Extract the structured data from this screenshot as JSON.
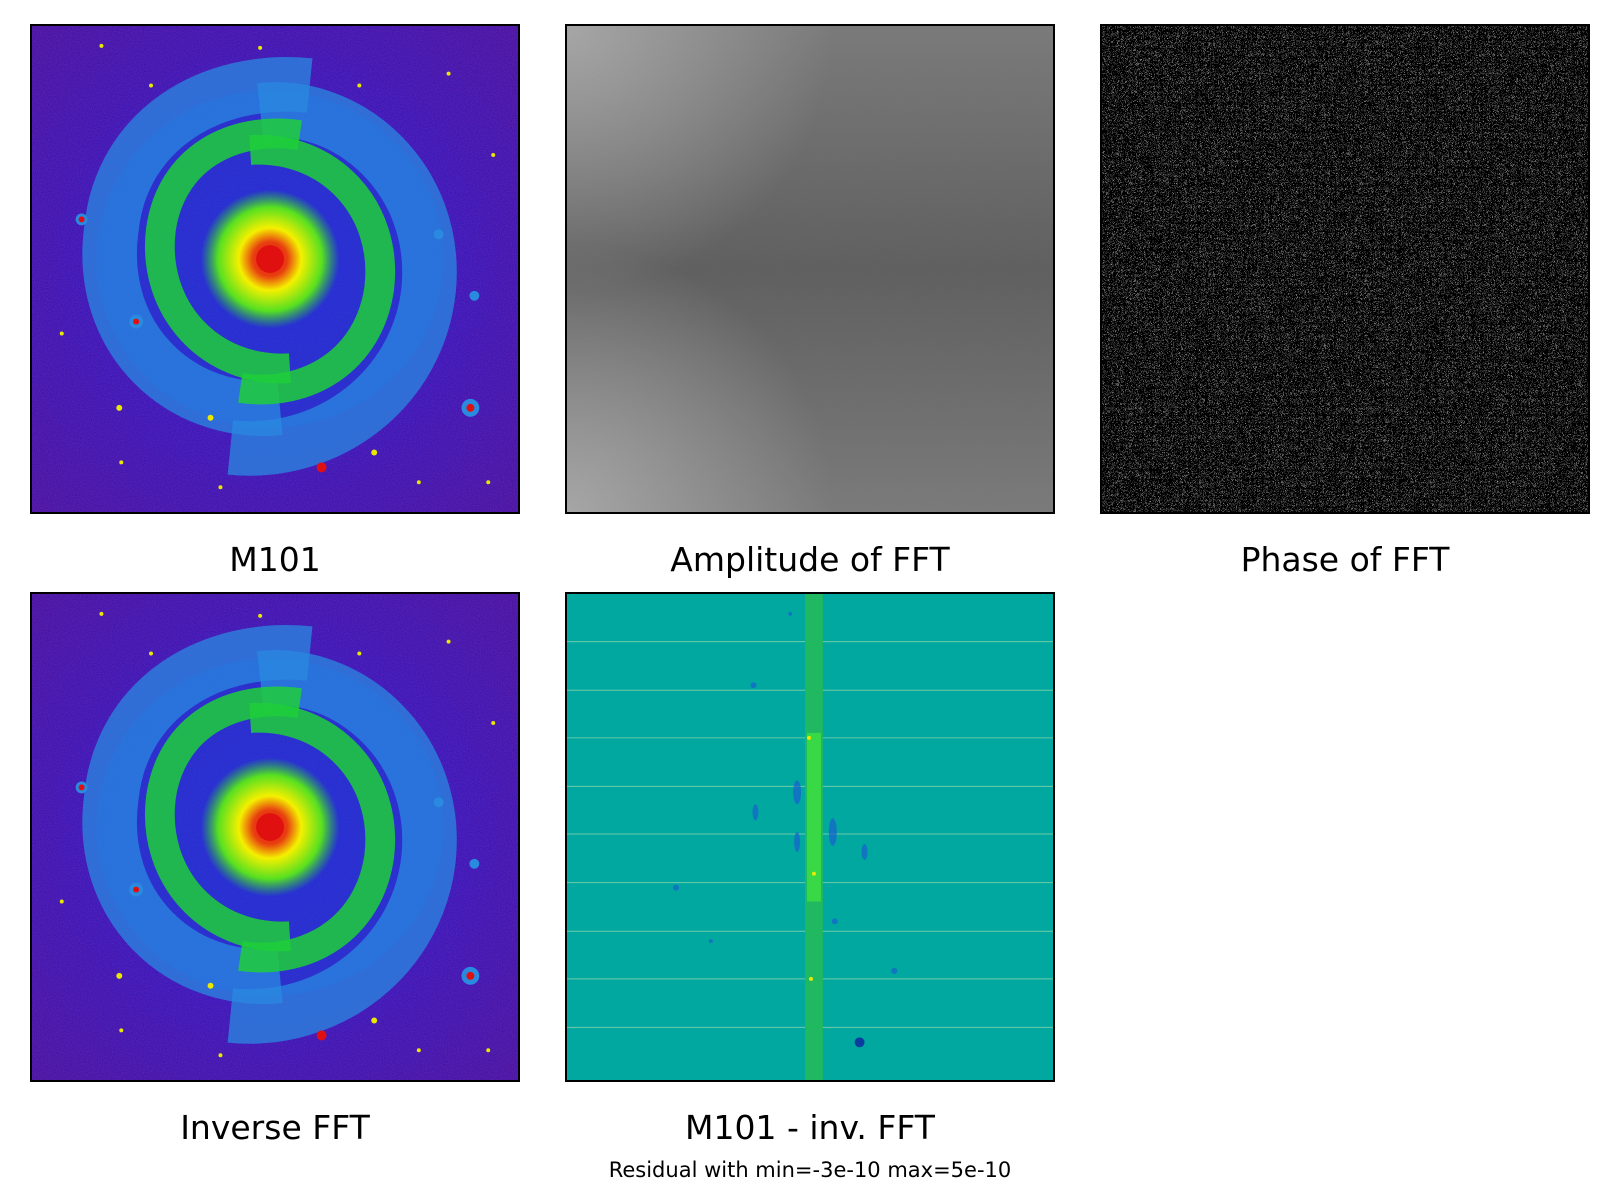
{
  "panels": [
    {
      "id": "m101",
      "caption": "M101"
    },
    {
      "id": "amplitude",
      "caption": "Amplitude of FFT"
    },
    {
      "id": "phase",
      "caption": "Phase of FFT"
    },
    {
      "id": "inverse",
      "caption": "Inverse FFT"
    },
    {
      "id": "residual",
      "caption": "M101 - inv. FFT",
      "subcaption": "Residual with min=-3e-10 max=5e-10"
    }
  ],
  "colors": {
    "background_galaxy": "#1a10c8",
    "arm_outer": "#2a8ae0",
    "arm_mid": "#1fcf3a",
    "core_yellow": "#f4f000",
    "core_red": "#e01010",
    "amplitude_gray": "#6a6a6a",
    "residual_teal": "#00a8a0"
  }
}
